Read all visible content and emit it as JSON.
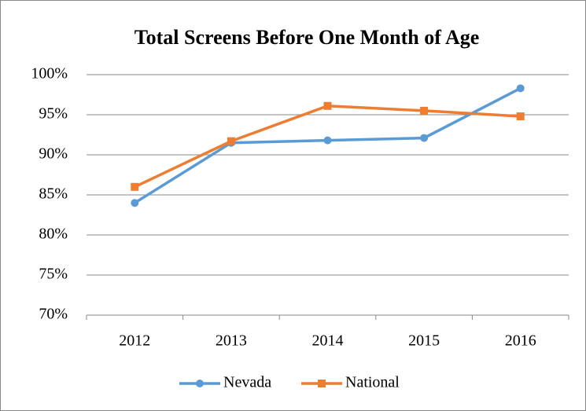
{
  "chart_data": {
    "type": "line",
    "title": "Total Screens Before One Month of Age",
    "categories": [
      "2012",
      "2013",
      "2014",
      "2015",
      "2016"
    ],
    "series": [
      {
        "name": "Nevada",
        "color": "#5b9bd5",
        "marker": "circle",
        "values": [
          84.0,
          91.5,
          91.8,
          92.1,
          98.3
        ]
      },
      {
        "name": "National",
        "color": "#ed7d31",
        "marker": "square",
        "values": [
          86.0,
          91.7,
          96.1,
          95.5,
          94.8
        ]
      }
    ],
    "ylim": [
      70,
      100
    ],
    "yticks": [
      {
        "value": 70,
        "label": "70%"
      },
      {
        "value": 75,
        "label": "75%"
      },
      {
        "value": 80,
        "label": "80%"
      },
      {
        "value": 85,
        "label": "85%"
      },
      {
        "value": 90,
        "label": "90%"
      },
      {
        "value": 95,
        "label": "95%"
      },
      {
        "value": 100,
        "label": "100%"
      }
    ],
    "grid": true,
    "legend": "bottom"
  }
}
